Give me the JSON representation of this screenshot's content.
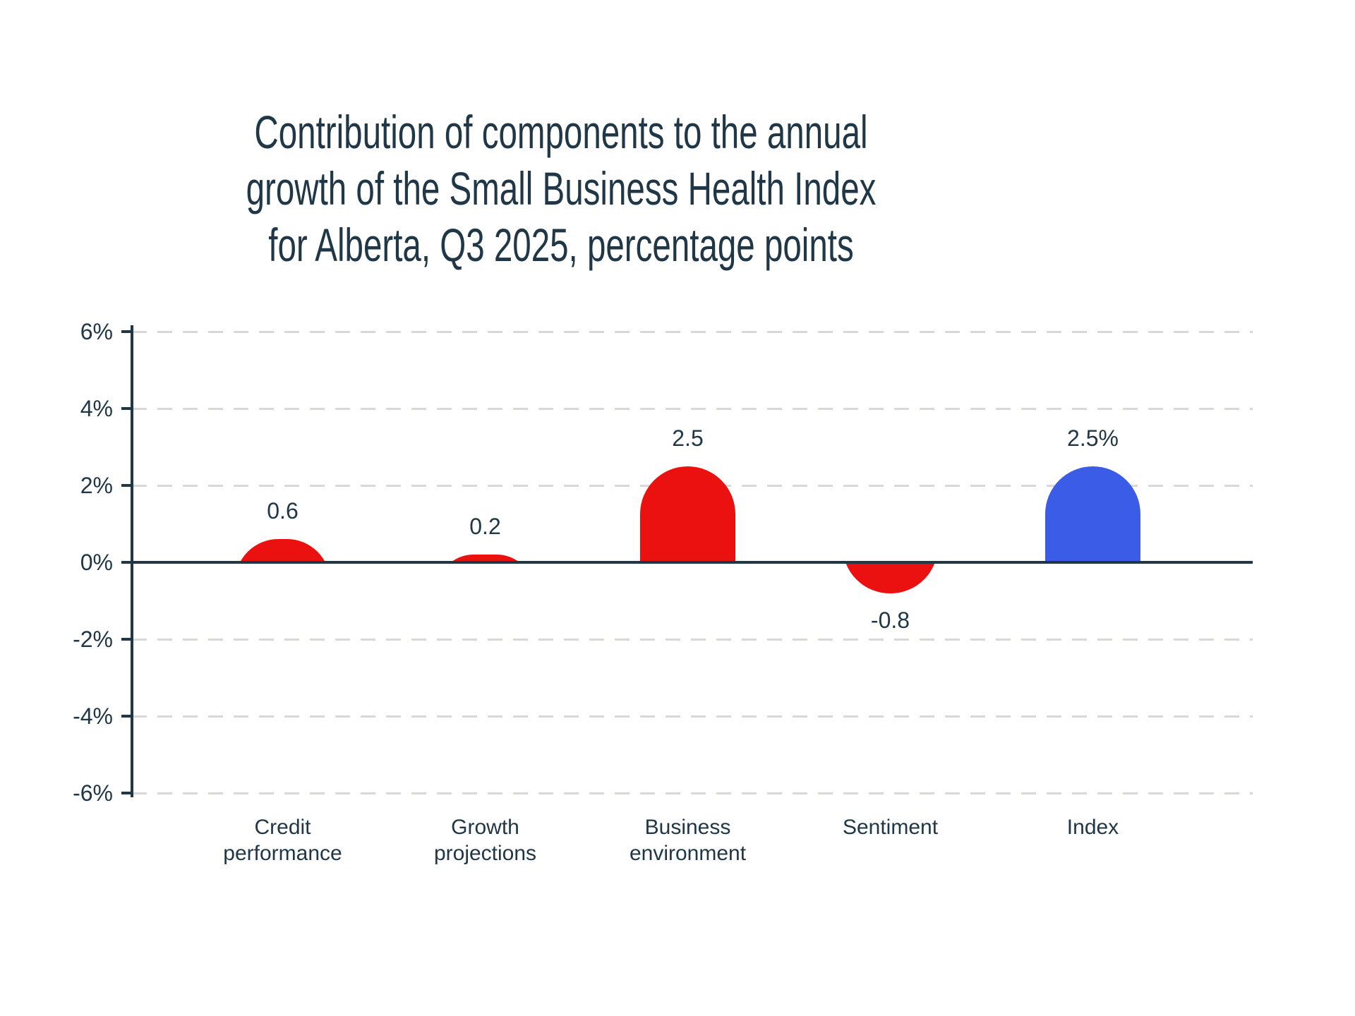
{
  "title": {
    "lines": [
      "Contribution of components to the annual",
      "growth of the Small Business Health Index",
      "for Alberta, Q3 2025, percentage points"
    ]
  },
  "chart_data": {
    "type": "bar",
    "title": "Contribution of components to the annual growth of the Small Business Health Index for Alberta, Q3 2025, percentage points",
    "categories": [
      "Credit performance",
      "Growth projections",
      "Business environment",
      "Sentiment",
      "Index"
    ],
    "values": [
      0.6,
      0.2,
      2.5,
      -0.8,
      2.5
    ],
    "value_labels": [
      "0.6",
      "0.2",
      "2.5",
      "-0.8",
      "2.5%"
    ],
    "bar_colors": [
      "#EC1111",
      "#EC1111",
      "#EC1111",
      "#EC1111",
      "#3A5CE6"
    ],
    "yticks": [
      {
        "label": "6%",
        "value": 6
      },
      {
        "label": "4%",
        "value": 4
      },
      {
        "label": "2%",
        "value": 2
      },
      {
        "label": "0%",
        "value": 0
      },
      {
        "label": "-2%",
        "value": -2
      },
      {
        "label": "-4%",
        "value": -4
      },
      {
        "label": "-6%",
        "value": -6
      }
    ],
    "ylim": [
      -6,
      6
    ],
    "xlabel": "",
    "ylabel": "",
    "grid": "horizontal-dashed",
    "legend": "none",
    "bar_style": "rounded-capsule-clipped-at-baseline",
    "colors": {
      "component_bar": "#EC1111",
      "index_bar": "#3A5CE6",
      "axis": "#203747",
      "gridline": "#D8D8D4",
      "text": "#203747",
      "background": "#FFFFFF"
    }
  }
}
